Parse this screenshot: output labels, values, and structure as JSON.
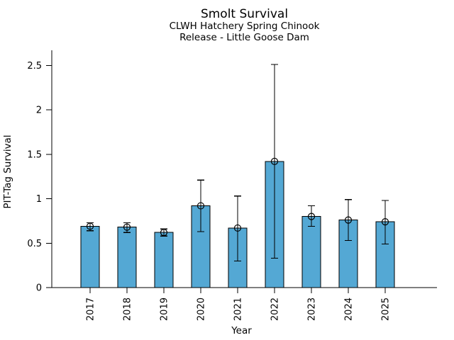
{
  "chart_data": {
    "type": "bar",
    "title": "Smolt Survival",
    "subtitle1": "CLWH Hatchery Spring Chinook",
    "subtitle2": "Release - Little Goose Dam",
    "xlabel": "Year",
    "ylabel": "PIT-Tag Survival",
    "categories": [
      "2017",
      "2018",
      "2019",
      "2020",
      "2021",
      "2022",
      "2023",
      "2024",
      "2025"
    ],
    "series": [
      {
        "name": "PIT-Tag Survival",
        "values": [
          0.69,
          0.68,
          0.62,
          0.92,
          0.67,
          1.42,
          0.8,
          0.76,
          0.74
        ],
        "ci_low": [
          0.64,
          0.62,
          0.58,
          0.63,
          0.3,
          0.33,
          0.69,
          0.53,
          0.49
        ],
        "ci_high": [
          0.73,
          0.73,
          0.66,
          1.21,
          1.03,
          2.51,
          0.92,
          0.99,
          0.98
        ]
      }
    ],
    "yticks": [
      0,
      0.5,
      1,
      1.5,
      2,
      2.5
    ],
    "ytick_labels": [
      "0",
      "0.5",
      "1",
      "1.5",
      "2",
      "2.5"
    ],
    "ylim": [
      0,
      2.67
    ],
    "xtick_rotation": 90,
    "grid": false,
    "legend": null,
    "marker": "open-circle",
    "bar_color": "#54A8D4",
    "bar_edge_color": "#000000",
    "errorbar_color": "#000000",
    "text_color": "#000000",
    "background_color": "#ffffff"
  }
}
